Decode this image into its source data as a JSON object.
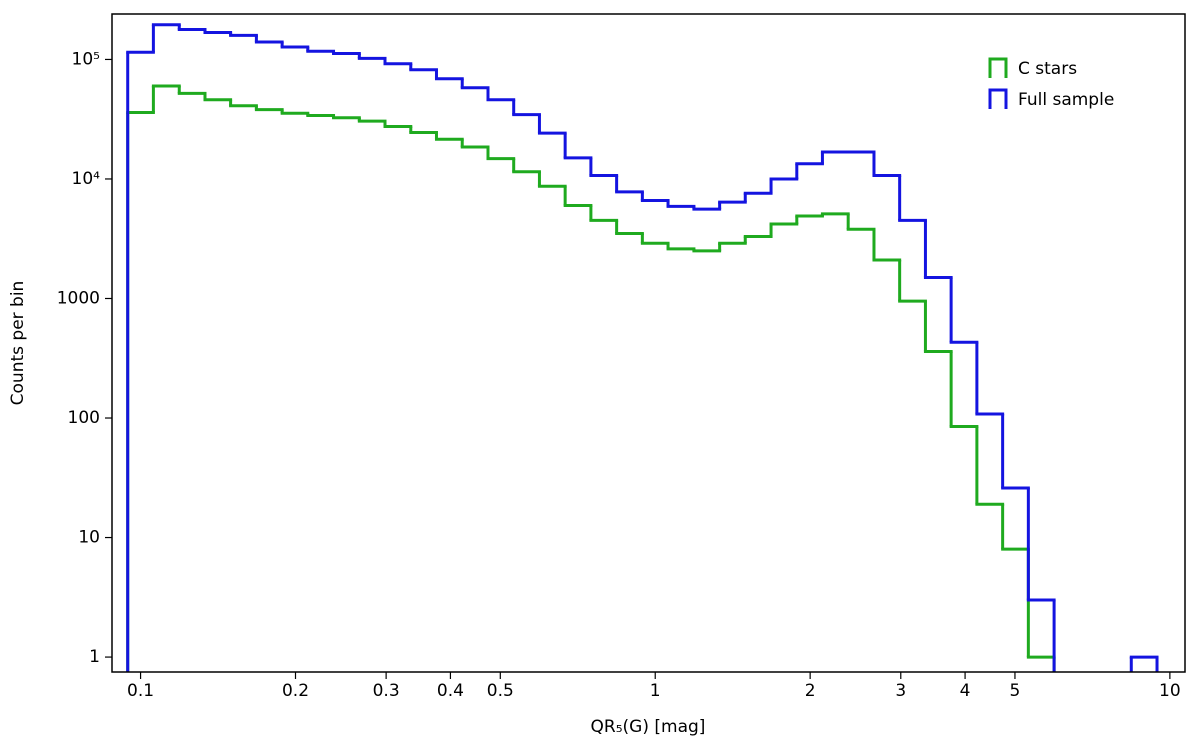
{
  "chart_data": {
    "type": "histogram",
    "xlabel": "QR₅(G) [mag]",
    "ylabel": "Counts per bin",
    "xscale": "log",
    "yscale": "log",
    "xlim": [
      0.088,
      10.7
    ],
    "ylim": [
      0.75,
      240000
    ],
    "xticks": [
      0.1,
      0.2,
      0.3,
      0.4,
      0.5,
      1,
      2,
      3,
      4,
      5,
      10
    ],
    "yticks": [
      1,
      10,
      100,
      1000,
      {
        "value": 10000,
        "label": "10⁴"
      },
      {
        "value": 100000,
        "label": "10⁵"
      }
    ],
    "legend": "upper right",
    "bins": [
      0.09441,
      0.1059,
      0.1189,
      0.1334,
      0.1496,
      0.1679,
      0.1884,
      0.2113,
      0.2371,
      0.2661,
      0.2985,
      0.335,
      0.3758,
      0.4217,
      0.4732,
      0.5309,
      0.5957,
      0.6683,
      0.7499,
      0.8414,
      0.9441,
      1.059,
      1.189,
      1.334,
      1.496,
      1.679,
      1.884,
      2.113,
      2.371,
      2.661,
      2.985,
      3.35,
      3.758,
      4.217,
      4.732,
      5.309,
      5.957,
      6.683,
      7.499,
      8.414,
      9.441
    ],
    "series": [
      {
        "name": "C stars",
        "color": "#1faa1f",
        "values": [
          36000,
          60000,
          52000,
          46000,
          41000,
          38000,
          35500,
          34000,
          32500,
          30500,
          27500,
          24500,
          21500,
          18500,
          14800,
          11500,
          8700,
          6000,
          4500,
          3500,
          2900,
          2600,
          2500,
          2900,
          3300,
          4200,
          4900,
          5100,
          3800,
          2100,
          950,
          360,
          85,
          19,
          8,
          1,
          0,
          0,
          0,
          0
        ]
      },
      {
        "name": "Full sample",
        "color": "#1414e0",
        "values": [
          115000,
          195000,
          178000,
          168000,
          159000,
          140000,
          127000,
          117000,
          112000,
          102000,
          92000,
          82000,
          69000,
          58000,
          46000,
          34500,
          24200,
          15000,
          10700,
          7800,
          6600,
          5900,
          5600,
          6400,
          7600,
          10000,
          13400,
          16800,
          16800,
          10700,
          4500,
          1500,
          430,
          108,
          26,
          3,
          0,
          0,
          0,
          1
        ]
      }
    ]
  }
}
